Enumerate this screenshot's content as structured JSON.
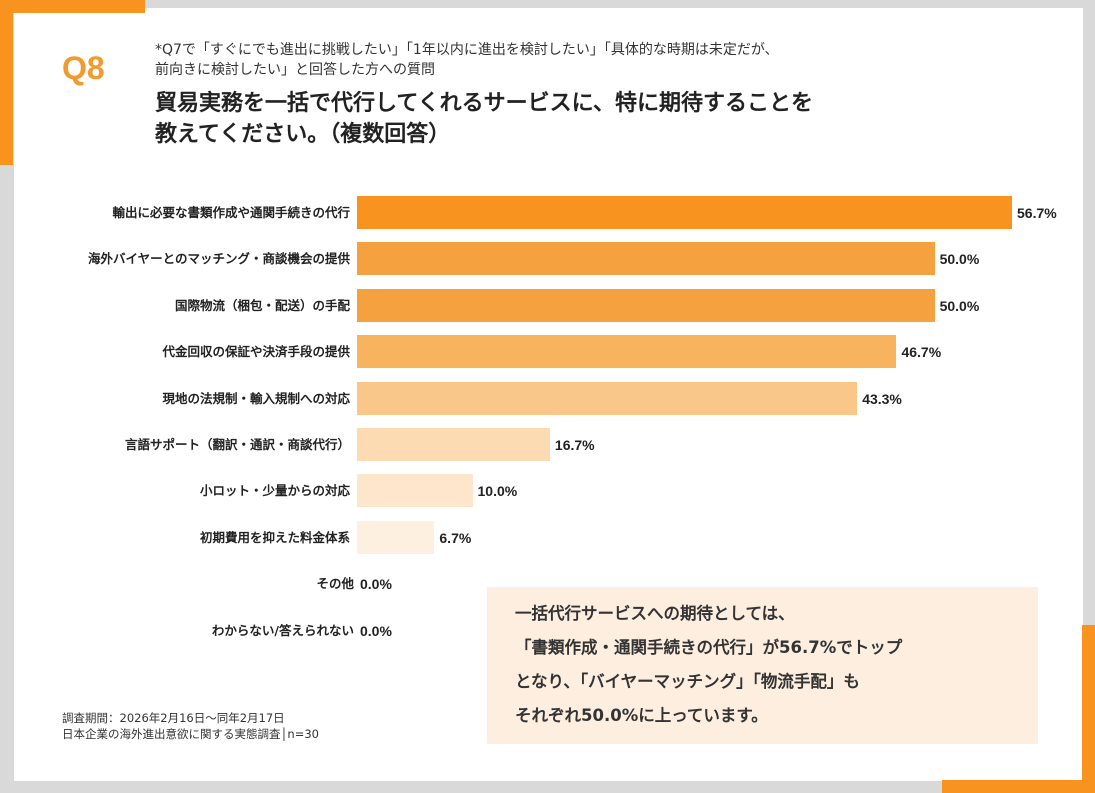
{
  "question_number": "Q8",
  "note_lines": [
    "*Q7で「すぐにでも進出に挑戦したい」「1年以内に進出を検討したい」「具体的な時期は未定だが、",
    "前向きに検討したい」と回答した方への質問"
  ],
  "title_lines": [
    "貿易実務を一括で代行してくれるサービスに、特に期待することを",
    "教えてください。（複数回答）"
  ],
  "chart_data": {
    "type": "bar",
    "orientation": "horizontal",
    "categories": [
      "輸出に必要な書類作成や通関手続きの代行",
      "海外バイヤーとのマッチング・商談機会の提供",
      "国際物流（梱包・配送）の手配",
      "代金回収の保証や決済手段の提供",
      "現地の法規制・輸入規制への対応",
      "言語サポート（翻訳・通訳・商談代行）",
      "小ロット・少量からの対応",
      "初期費用を抑えた料金体系",
      "その他",
      "わからない/答えられない"
    ],
    "values": [
      56.7,
      50.0,
      50.0,
      46.7,
      43.3,
      16.7,
      10.0,
      6.7,
      0.0,
      0.0
    ],
    "value_labels": [
      "56.7%",
      "50.0%",
      "50.0%",
      "46.7%",
      "43.3%",
      "16.7%",
      "10.0%",
      "6.7%",
      "0.0%",
      "0.0%"
    ],
    "colors": [
      "#f7931e",
      "#f6a140",
      "#f6a140",
      "#f8b35f",
      "#fac78a",
      "#fcdab2",
      "#fde6cc",
      "#fef0e0",
      "#fef0e0",
      "#fef0e0"
    ],
    "xlim": [
      0,
      56.7
    ],
    "grid": false
  },
  "footer": [
    "調査期間：2026年2月16日～同年2月17日",
    "日本企業の海外進出意欲に関する実態調査│n=30"
  ],
  "callout_lines": [
    "一括代行サービスへの期待としては、",
    "「書類作成・通関手続きの代行」が56.7%でトップ",
    "となり、「バイヤーマッチング」「物流手配」も",
    "それぞれ50.0%に上っています。"
  ],
  "accent_color": "#f7931e"
}
